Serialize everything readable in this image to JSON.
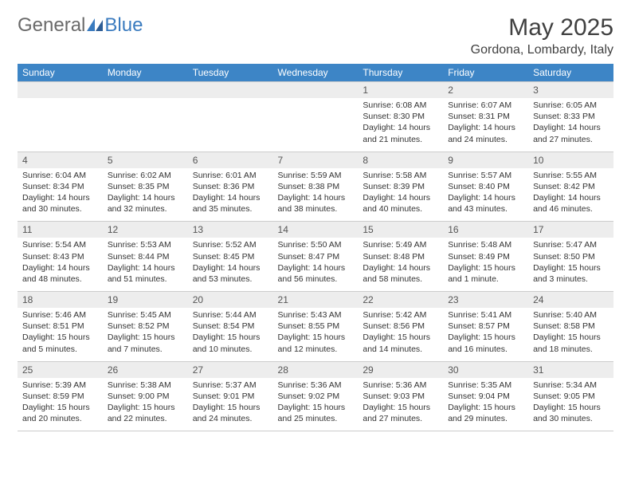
{
  "logo": {
    "text1": "General",
    "text2": "Blue"
  },
  "title": "May 2025",
  "location": "Gordona, Lombardy, Italy",
  "colors": {
    "header_bg": "#3d85c6",
    "header_text": "#ffffff",
    "daynum_bg": "#ededed",
    "border": "#cccccc",
    "text": "#333333",
    "logo_gray": "#6a6a6a",
    "logo_blue": "#3a7bbf"
  },
  "day_headers": [
    "Sunday",
    "Monday",
    "Tuesday",
    "Wednesday",
    "Thursday",
    "Friday",
    "Saturday"
  ],
  "weeks": [
    [
      null,
      null,
      null,
      null,
      {
        "n": "1",
        "sr": "6:08 AM",
        "ss": "8:30 PM",
        "dl": "14 hours and 21 minutes."
      },
      {
        "n": "2",
        "sr": "6:07 AM",
        "ss": "8:31 PM",
        "dl": "14 hours and 24 minutes."
      },
      {
        "n": "3",
        "sr": "6:05 AM",
        "ss": "8:33 PM",
        "dl": "14 hours and 27 minutes."
      }
    ],
    [
      {
        "n": "4",
        "sr": "6:04 AM",
        "ss": "8:34 PM",
        "dl": "14 hours and 30 minutes."
      },
      {
        "n": "5",
        "sr": "6:02 AM",
        "ss": "8:35 PM",
        "dl": "14 hours and 32 minutes."
      },
      {
        "n": "6",
        "sr": "6:01 AM",
        "ss": "8:36 PM",
        "dl": "14 hours and 35 minutes."
      },
      {
        "n": "7",
        "sr": "5:59 AM",
        "ss": "8:38 PM",
        "dl": "14 hours and 38 minutes."
      },
      {
        "n": "8",
        "sr": "5:58 AM",
        "ss": "8:39 PM",
        "dl": "14 hours and 40 minutes."
      },
      {
        "n": "9",
        "sr": "5:57 AM",
        "ss": "8:40 PM",
        "dl": "14 hours and 43 minutes."
      },
      {
        "n": "10",
        "sr": "5:55 AM",
        "ss": "8:42 PM",
        "dl": "14 hours and 46 minutes."
      }
    ],
    [
      {
        "n": "11",
        "sr": "5:54 AM",
        "ss": "8:43 PM",
        "dl": "14 hours and 48 minutes."
      },
      {
        "n": "12",
        "sr": "5:53 AM",
        "ss": "8:44 PM",
        "dl": "14 hours and 51 minutes."
      },
      {
        "n": "13",
        "sr": "5:52 AM",
        "ss": "8:45 PM",
        "dl": "14 hours and 53 minutes."
      },
      {
        "n": "14",
        "sr": "5:50 AM",
        "ss": "8:47 PM",
        "dl": "14 hours and 56 minutes."
      },
      {
        "n": "15",
        "sr": "5:49 AM",
        "ss": "8:48 PM",
        "dl": "14 hours and 58 minutes."
      },
      {
        "n": "16",
        "sr": "5:48 AM",
        "ss": "8:49 PM",
        "dl": "15 hours and 1 minute."
      },
      {
        "n": "17",
        "sr": "5:47 AM",
        "ss": "8:50 PM",
        "dl": "15 hours and 3 minutes."
      }
    ],
    [
      {
        "n": "18",
        "sr": "5:46 AM",
        "ss": "8:51 PM",
        "dl": "15 hours and 5 minutes."
      },
      {
        "n": "19",
        "sr": "5:45 AM",
        "ss": "8:52 PM",
        "dl": "15 hours and 7 minutes."
      },
      {
        "n": "20",
        "sr": "5:44 AM",
        "ss": "8:54 PM",
        "dl": "15 hours and 10 minutes."
      },
      {
        "n": "21",
        "sr": "5:43 AM",
        "ss": "8:55 PM",
        "dl": "15 hours and 12 minutes."
      },
      {
        "n": "22",
        "sr": "5:42 AM",
        "ss": "8:56 PM",
        "dl": "15 hours and 14 minutes."
      },
      {
        "n": "23",
        "sr": "5:41 AM",
        "ss": "8:57 PM",
        "dl": "15 hours and 16 minutes."
      },
      {
        "n": "24",
        "sr": "5:40 AM",
        "ss": "8:58 PM",
        "dl": "15 hours and 18 minutes."
      }
    ],
    [
      {
        "n": "25",
        "sr": "5:39 AM",
        "ss": "8:59 PM",
        "dl": "15 hours and 20 minutes."
      },
      {
        "n": "26",
        "sr": "5:38 AM",
        "ss": "9:00 PM",
        "dl": "15 hours and 22 minutes."
      },
      {
        "n": "27",
        "sr": "5:37 AM",
        "ss": "9:01 PM",
        "dl": "15 hours and 24 minutes."
      },
      {
        "n": "28",
        "sr": "5:36 AM",
        "ss": "9:02 PM",
        "dl": "15 hours and 25 minutes."
      },
      {
        "n": "29",
        "sr": "5:36 AM",
        "ss": "9:03 PM",
        "dl": "15 hours and 27 minutes."
      },
      {
        "n": "30",
        "sr": "5:35 AM",
        "ss": "9:04 PM",
        "dl": "15 hours and 29 minutes."
      },
      {
        "n": "31",
        "sr": "5:34 AM",
        "ss": "9:05 PM",
        "dl": "15 hours and 30 minutes."
      }
    ]
  ],
  "labels": {
    "sunrise": "Sunrise:",
    "sunset": "Sunset:",
    "daylight": "Daylight:"
  }
}
